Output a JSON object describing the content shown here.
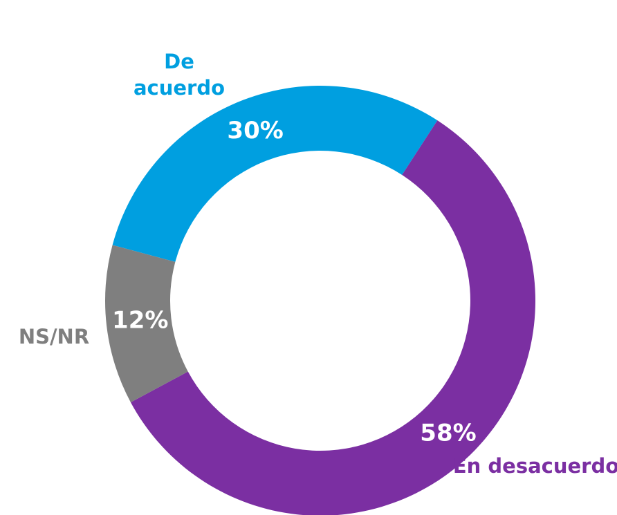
{
  "chart_data": {
    "type": "donut",
    "categories": [
      "De acuerdo",
      "En desacuerdo",
      "NS/NR"
    ],
    "values": [
      30,
      58,
      12
    ],
    "value_labels": [
      "30%",
      "58%",
      "12%"
    ],
    "colors": [
      "#009fe0",
      "#7b2fa2",
      "#7f7f7f"
    ]
  }
}
